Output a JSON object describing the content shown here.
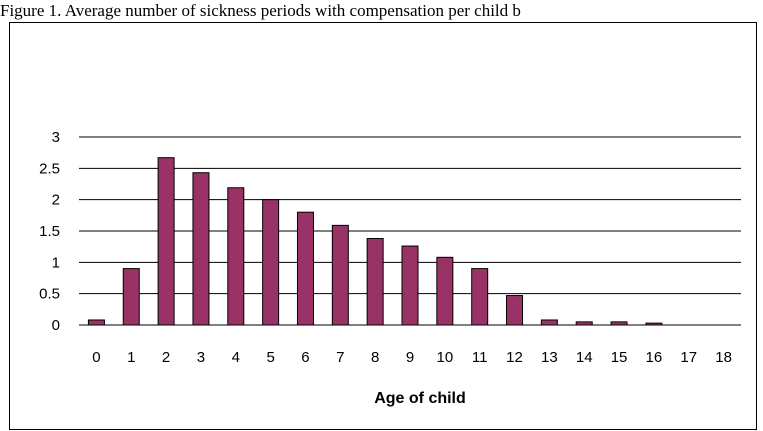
{
  "caption": "Figure 1. Average number of sickness periods with compensation per child b",
  "chart_data": {
    "type": "bar",
    "categories": [
      "0",
      "1",
      "2",
      "3",
      "4",
      "5",
      "6",
      "7",
      "8",
      "9",
      "10",
      "11",
      "12",
      "13",
      "14",
      "15",
      "16",
      "17",
      "18"
    ],
    "values": [
      0.08,
      0.9,
      2.67,
      2.43,
      2.19,
      2.0,
      1.8,
      1.59,
      1.38,
      1.26,
      1.08,
      0.9,
      0.47,
      0.08,
      0.05,
      0.05,
      0.03,
      0.0,
      0.0
    ],
    "ylim": [
      0,
      3
    ],
    "yticks": [
      "0",
      "0.5",
      "1",
      "1.5",
      "2",
      "2.5",
      "3"
    ],
    "xlabel": "Age of child",
    "ylabel": "",
    "grid": true,
    "bar_color": "#993366"
  }
}
